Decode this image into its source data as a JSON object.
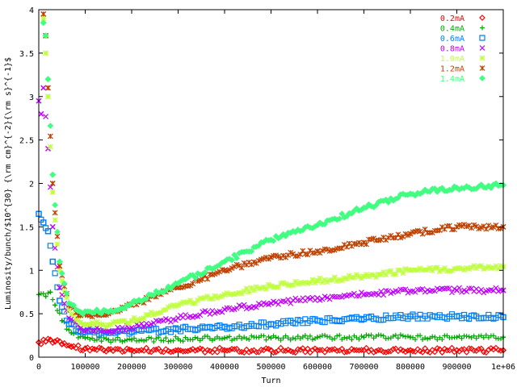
{
  "chart_data": {
    "type": "scatter",
    "title": "",
    "xlabel": "Turn",
    "ylabel": "Luminosity/bunch/$10^{30} {\\rm cm}^{-2}{\\rm s}^{-1}$",
    "xlim": [
      0,
      1000000
    ],
    "ylim": [
      0,
      4
    ],
    "grid": false,
    "legend_position": "top-right",
    "x_ticks": [
      0,
      100000,
      200000,
      300000,
      400000,
      500000,
      600000,
      700000,
      800000,
      900000,
      1000000
    ],
    "x_tick_labels": [
      "0",
      "100000",
      "200000",
      "300000",
      "400000",
      "500000",
      "600000",
      "700000",
      "800000",
      "900000",
      "1e+06"
    ],
    "y_ticks": [
      0,
      0.5,
      1,
      1.5,
      2,
      2.5,
      3,
      3.5,
      4
    ],
    "y_tick_labels": [
      "0",
      "0.5",
      "1",
      "1.5",
      "2",
      "2.5",
      "3",
      "3.5",
      "4"
    ],
    "series": [
      {
        "name": "0.2mA",
        "color": "#ff0000",
        "marker": "diamond",
        "x": [
          0,
          15000,
          25000,
          35000,
          50000,
          70000,
          100000,
          150000,
          200000,
          300000,
          400000,
          500000,
          600000,
          700000,
          800000,
          900000,
          1000000
        ],
        "y": [
          0.17,
          0.18,
          0.2,
          0.18,
          0.15,
          0.12,
          0.1,
          0.09,
          0.08,
          0.08,
          0.08,
          0.08,
          0.08,
          0.08,
          0.08,
          0.08,
          0.08
        ]
      },
      {
        "name": "0.4mA",
        "color": "#00aa00",
        "marker": "plus",
        "x": [
          0,
          15000,
          25000,
          35000,
          50000,
          70000,
          100000,
          150000,
          200000,
          300000,
          400000,
          500000,
          600000,
          700000,
          800000,
          900000,
          1000000
        ],
        "y": [
          0.72,
          0.7,
          0.75,
          0.6,
          0.42,
          0.28,
          0.22,
          0.2,
          0.2,
          0.21,
          0.22,
          0.22,
          0.23,
          0.23,
          0.23,
          0.23,
          0.23
        ]
      },
      {
        "name": "0.6mA",
        "color": "#0080ff",
        "marker": "square",
        "x": [
          0,
          10000,
          20000,
          30000,
          45000,
          65000,
          90000,
          150000,
          200000,
          300000,
          400000,
          500000,
          600000,
          700000,
          800000,
          900000,
          1000000
        ],
        "y": [
          1.65,
          1.55,
          1.45,
          1.1,
          0.65,
          0.38,
          0.3,
          0.28,
          0.29,
          0.32,
          0.35,
          0.38,
          0.42,
          0.44,
          0.47,
          0.47,
          0.46
        ]
      },
      {
        "name": "0.8mA",
        "color": "#c000ff",
        "marker": "cross",
        "x": [
          0,
          5000,
          10000,
          20000,
          30000,
          45000,
          65000,
          90000,
          150000,
          200000,
          300000,
          400000,
          500000,
          600000,
          700000,
          800000,
          900000,
          1000000
        ],
        "y": [
          2.95,
          2.8,
          3.1,
          2.4,
          1.5,
          0.8,
          0.45,
          0.33,
          0.3,
          0.34,
          0.45,
          0.55,
          0.62,
          0.68,
          0.72,
          0.76,
          0.77,
          0.77
        ]
      },
      {
        "name": "1.0mA",
        "color": "#c0ff40",
        "marker": "star",
        "x": [
          10000,
          15000,
          20000,
          30000,
          45000,
          65000,
          90000,
          150000,
          200000,
          300000,
          400000,
          500000,
          600000,
          700000,
          800000,
          900000,
          1000000
        ],
        "y": [
          3.9,
          3.5,
          3.0,
          1.9,
          1.0,
          0.55,
          0.4,
          0.37,
          0.42,
          0.6,
          0.72,
          0.82,
          0.88,
          0.93,
          1.0,
          1.02,
          1.04
        ]
      },
      {
        "name": "1.2mA",
        "color": "#c04000",
        "marker": "asterisk",
        "x": [
          10000,
          15000,
          20000,
          30000,
          45000,
          65000,
          90000,
          150000,
          200000,
          300000,
          400000,
          500000,
          600000,
          700000,
          800000,
          900000,
          1000000
        ],
        "y": [
          3.95,
          3.7,
          3.1,
          2.0,
          1.05,
          0.6,
          0.48,
          0.5,
          0.6,
          0.8,
          1.0,
          1.15,
          1.22,
          1.32,
          1.42,
          1.5,
          1.5
        ]
      },
      {
        "name": "1.4mA",
        "color": "#40ff80",
        "marker": "diamond-filled",
        "x": [
          10000,
          15000,
          20000,
          30000,
          45000,
          65000,
          90000,
          150000,
          200000,
          300000,
          400000,
          500000,
          600000,
          700000,
          800000,
          900000,
          1000000
        ],
        "y": [
          3.85,
          3.7,
          3.2,
          2.1,
          1.1,
          0.62,
          0.52,
          0.52,
          0.62,
          0.85,
          1.1,
          1.35,
          1.52,
          1.72,
          1.88,
          1.95,
          1.98
        ]
      }
    ]
  }
}
